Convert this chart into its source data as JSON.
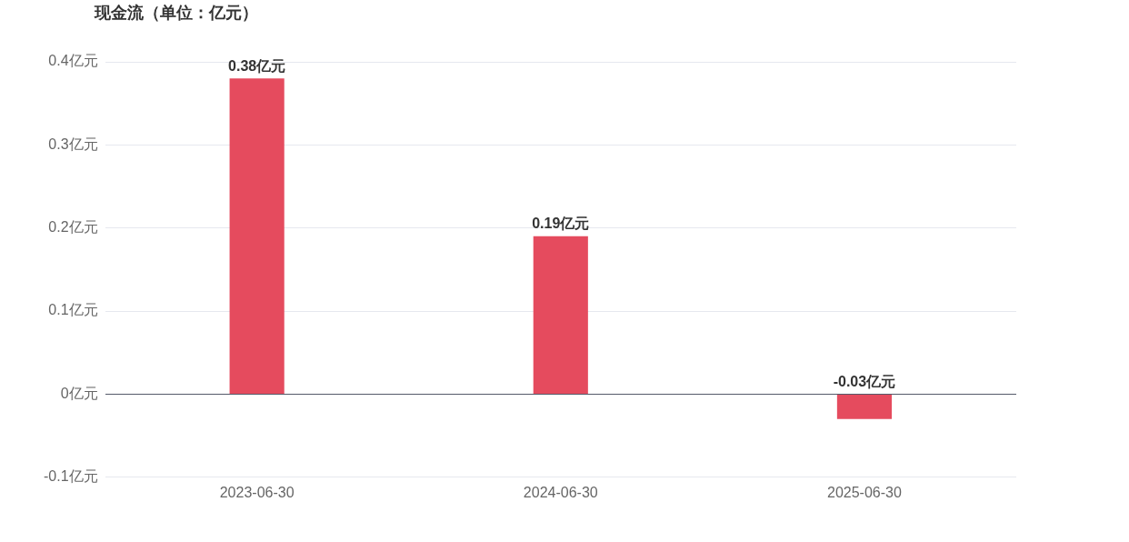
{
  "chart_data": {
    "type": "bar",
    "title": "现金流（单位：亿元）",
    "categories": [
      "2023-06-30",
      "2024-06-30",
      "2025-06-30"
    ],
    "values": [
      0.38,
      0.19,
      -0.03
    ],
    "value_labels": [
      "0.38亿元",
      "0.19亿元",
      "-0.03亿元"
    ],
    "color": "#e54b5e",
    "ylim": [
      -0.1,
      0.4
    ],
    "yticks": [
      {
        "value": -0.1,
        "label": "-0.1亿元"
      },
      {
        "value": 0,
        "label": "0亿元"
      },
      {
        "value": 0.1,
        "label": "0.1亿元"
      },
      {
        "value": 0.2,
        "label": "0.2亿元"
      },
      {
        "value": 0.3,
        "label": "0.3亿元"
      },
      {
        "value": 0.4,
        "label": "0.4亿元"
      }
    ],
    "grid": "y",
    "legend": false
  }
}
